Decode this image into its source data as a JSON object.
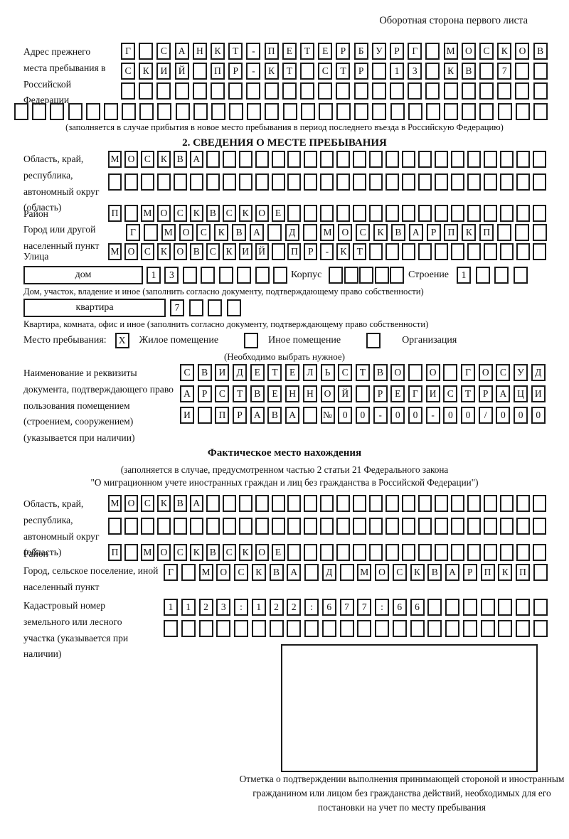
{
  "colors": {
    "ink": "#1c1c1c",
    "paper": "#ffffff"
  },
  "header": {
    "note": "Оборотная сторона первого листа"
  },
  "section1": {
    "label": "Адрес прежнего места пребывания в Российской Федерации",
    "rows": [
      {
        "t": "Г САНКТ-ПЕТЕРБУРГ МОСКОВ",
        "n": 24
      },
      {
        "t": "СКИЙ ПР-КТ СТР 13 КВ 7",
        "n": 24
      },
      {
        "t": "",
        "n": 24
      },
      {
        "t": "",
        "n": 30
      }
    ],
    "caption": "(заполняется в случае прибытия в новое место пребывания в период последнего въезда в Российскую Федерацию)"
  },
  "section2": {
    "title": "2. СВЕДЕНИЯ О МЕСТЕ ПРЕБЫВАНИЯ",
    "region": {
      "label": "Область, край, республика, автономный округ (область)",
      "row1": {
        "t": "МОСКВА",
        "n": 27
      },
      "row2": {
        "t": "",
        "n": 27
      }
    },
    "district": {
      "label": "Район",
      "row": {
        "t": "П МОСКВСКОЕ",
        "n": 27
      }
    },
    "city": {
      "label": "Город или другой населенный пункт",
      "row": {
        "t": "Г МОСКВА Д МОСКВАРПКП",
        "n": 24
      }
    },
    "street": {
      "label": "Улица",
      "row": {
        "t": "МОСКОВСКИЙ ПР-КТ",
        "n": 27
      }
    },
    "house": {
      "box_label": "дом",
      "cells": {
        "t": "13",
        "n": 8
      },
      "korpus_label": "Корпус",
      "korpus_cells": {
        "t": "",
        "n": 5
      },
      "stroenie_label": "Строение",
      "stroenie_cells": {
        "t": "1",
        "n": 4
      },
      "caption": "Дом, участок, владение и иное (заполнить согласно документу, подтверждающему право собственности)"
    },
    "apartment": {
      "box_label": "квартира",
      "cells": {
        "t": "7",
        "n": 4
      },
      "caption": "Квартира, комната, офис и иное (заполнить согласно документу, подтверждающему право собственности)"
    },
    "stay": {
      "label": "Место пребывания:",
      "options": [
        {
          "mark": "X",
          "label": "Жилое помещение"
        },
        {
          "mark": "",
          "label": "Иное помещение"
        },
        {
          "mark": "",
          "label": "Организация"
        }
      ],
      "note": "(Необходимо выбрать нужное)"
    },
    "doc": {
      "label": "Наименование и реквизиты документа, подтверждающего право пользования помещением (строением, сооружением) (указывается при наличии)",
      "rows": [
        {
          "t": "СВИДЕТЕЛЬСТВО О ГОСУД",
          "n": 21
        },
        {
          "t": "АРСТВЕННОЙ РЕГИСТРАЦИ",
          "n": 21
        },
        {
          "t": "И ПРАВА №00-00-00/000",
          "n": 21
        }
      ]
    }
  },
  "section3": {
    "title": "Фактическое место нахождения",
    "subtitle1": "(заполняется в случае, предусмотренном частью 2 статьи 21 Федерального закона",
    "subtitle2": "\"О миграционном учете иностранных граждан и лиц без гражданства в Российской Федерации\")",
    "region": {
      "label": "Область, край, республика, автономный округ (область)",
      "row1": {
        "t": "МОСКВА",
        "n": 27
      },
      "row2": {
        "t": "",
        "n": 27
      }
    },
    "district": {
      "label": "Район",
      "row": {
        "t": "П МОСКВСКОЕ",
        "n": 27
      }
    },
    "city": {
      "label": "Город, сельское поселение, иной населенный пункт",
      "row": {
        "t": "Г МОСКВА Д МОСКВАРПКП",
        "n": 22
      }
    },
    "cadastre": {
      "label": "Кадастровый номер земельного или лесного участка (указывается при наличии)",
      "row1": {
        "t": "1123:122:677:66",
        "n": 22
      },
      "row2": {
        "t": "",
        "n": 22
      }
    },
    "stamp_caption": "Отметка о подтверждении выполнения принимающей стороной и иностранным гражданином или лицом без гражданства действий, необходимых для его постановки на учет по месту пребывания"
  }
}
